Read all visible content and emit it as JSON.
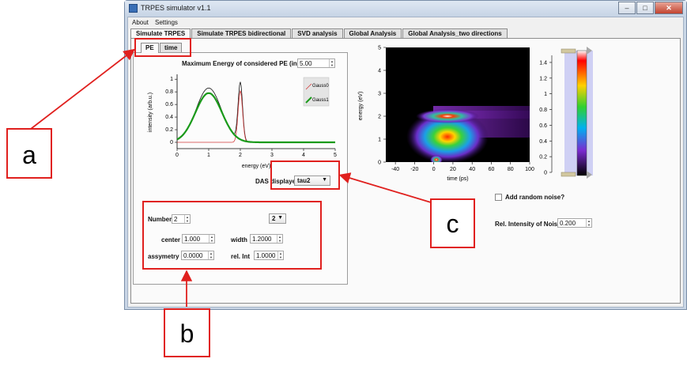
{
  "window": {
    "title": "TRPES simulator v1.1",
    "buttons": [
      "–",
      "□",
      "✕"
    ]
  },
  "menu": [
    "About",
    "Settings"
  ],
  "main_tabs": [
    "Simulate TRPES",
    "Simulate TRPES bidirectional",
    "SVD analysis",
    "Global Analysis",
    "Global Analysis_two directions"
  ],
  "sub_tabs": [
    "PE",
    "time"
  ],
  "max_energy": {
    "label": "Maximum Energy of considered PE (in eV)",
    "value": "5.00"
  },
  "left_plot": {
    "ylabel": "intensity (arb.u.)",
    "xlabel": "energy (eV)",
    "xticks": [
      "0",
      "1",
      "2",
      "3",
      "4",
      "5"
    ],
    "yticks": [
      "0",
      "0.2",
      "0.4",
      "0.6",
      "0.8",
      "1"
    ],
    "legend": [
      "Gauss0",
      "Gauss1"
    ]
  },
  "das": {
    "label": "DAS displayed",
    "value": "tau2"
  },
  "params": {
    "number_label": "Number",
    "number_value": "2",
    "select_value": "2",
    "center_label": "center",
    "center_value": "1.000",
    "width_label": "width",
    "width_value": "1.2000",
    "assy_label": "assymetry",
    "assy_value": "0.0000",
    "relint_label": "rel. Int",
    "relint_value": "1.0000"
  },
  "heatmap": {
    "ylabel": "energy (eV)",
    "xlabel": "time (ps)",
    "xticks": [
      "-40",
      "-20",
      "0",
      "20",
      "40",
      "60",
      "80",
      "100"
    ],
    "yticks": [
      "0",
      "1",
      "2",
      "3",
      "4",
      "5"
    ]
  },
  "colorbar": {
    "ticks": [
      "0",
      "0.2",
      "0.4",
      "0.6",
      "0.8",
      "1",
      "1.2",
      "1.4"
    ]
  },
  "noise": {
    "checkbox_label": "Add random noise?",
    "intensity_label": "Rel. Intensity of Noise",
    "intensity_value": "0.200"
  },
  "annotations": {
    "a": "a",
    "b": "b",
    "c": "c"
  },
  "colors": {
    "annotation": "#e0201e",
    "window_frame": "#c9d6e6",
    "gauss0": "#d23a3a",
    "gauss1": "#1a9a1a"
  }
}
